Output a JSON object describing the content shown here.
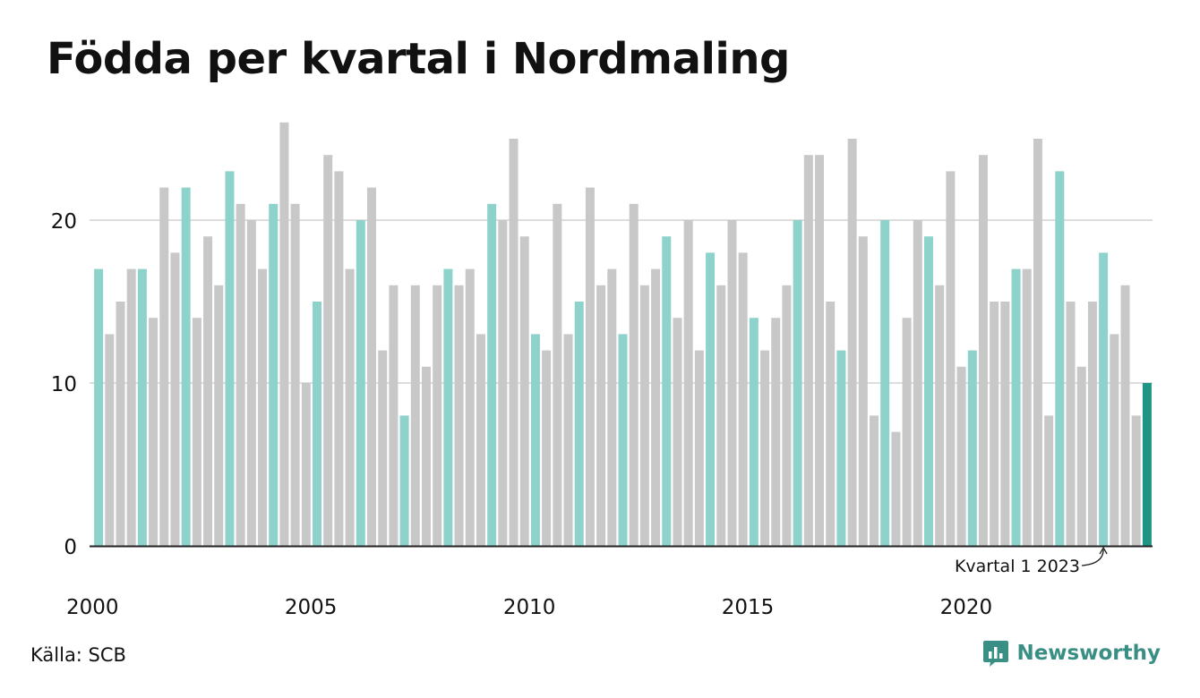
{
  "title": "Födda per kvartal i Nordmaling",
  "source": "Källa: SCB",
  "brand": {
    "name": "Newsworthy",
    "icon": "newsworthy-logo-icon"
  },
  "colors": {
    "highlight": "#8dd3cb",
    "latest": "#1e9584",
    "other": "#c8c8c8",
    "grid": "#dddddd",
    "axis": "#222222"
  },
  "chart_data": {
    "type": "bar",
    "title": "Födda per kvartal i Nordmaling",
    "xlabel": "",
    "ylabel": "",
    "ylim": [
      0,
      27
    ],
    "yticks": [
      0,
      10,
      20
    ],
    "grid": true,
    "start": {
      "year": 2000,
      "quarter": 1
    },
    "xtick_labels": [
      "2000",
      "2005",
      "2010",
      "2015",
      "2020"
    ],
    "values": [
      17,
      13,
      15,
      17,
      17,
      14,
      22,
      18,
      22,
      14,
      19,
      16,
      23,
      21,
      20,
      17,
      21,
      26,
      21,
      10,
      15,
      24,
      23,
      17,
      20,
      22,
      12,
      16,
      8,
      16,
      11,
      16,
      17,
      16,
      17,
      13,
      21,
      20,
      25,
      19,
      13,
      12,
      21,
      13,
      15,
      22,
      16,
      17,
      13,
      21,
      16,
      17,
      19,
      14,
      20,
      12,
      18,
      16,
      20,
      18,
      14,
      12,
      14,
      16,
      20,
      24,
      24,
      15,
      12,
      25,
      19,
      8,
      20,
      7,
      14,
      20,
      19,
      16,
      23,
      11,
      12,
      24,
      15,
      15,
      17,
      17,
      25,
      8,
      23,
      15,
      11,
      15,
      18,
      13,
      16,
      8,
      10
    ],
    "highlight": "Kvartal 1",
    "annotation": "Kvartal 1 2023"
  }
}
